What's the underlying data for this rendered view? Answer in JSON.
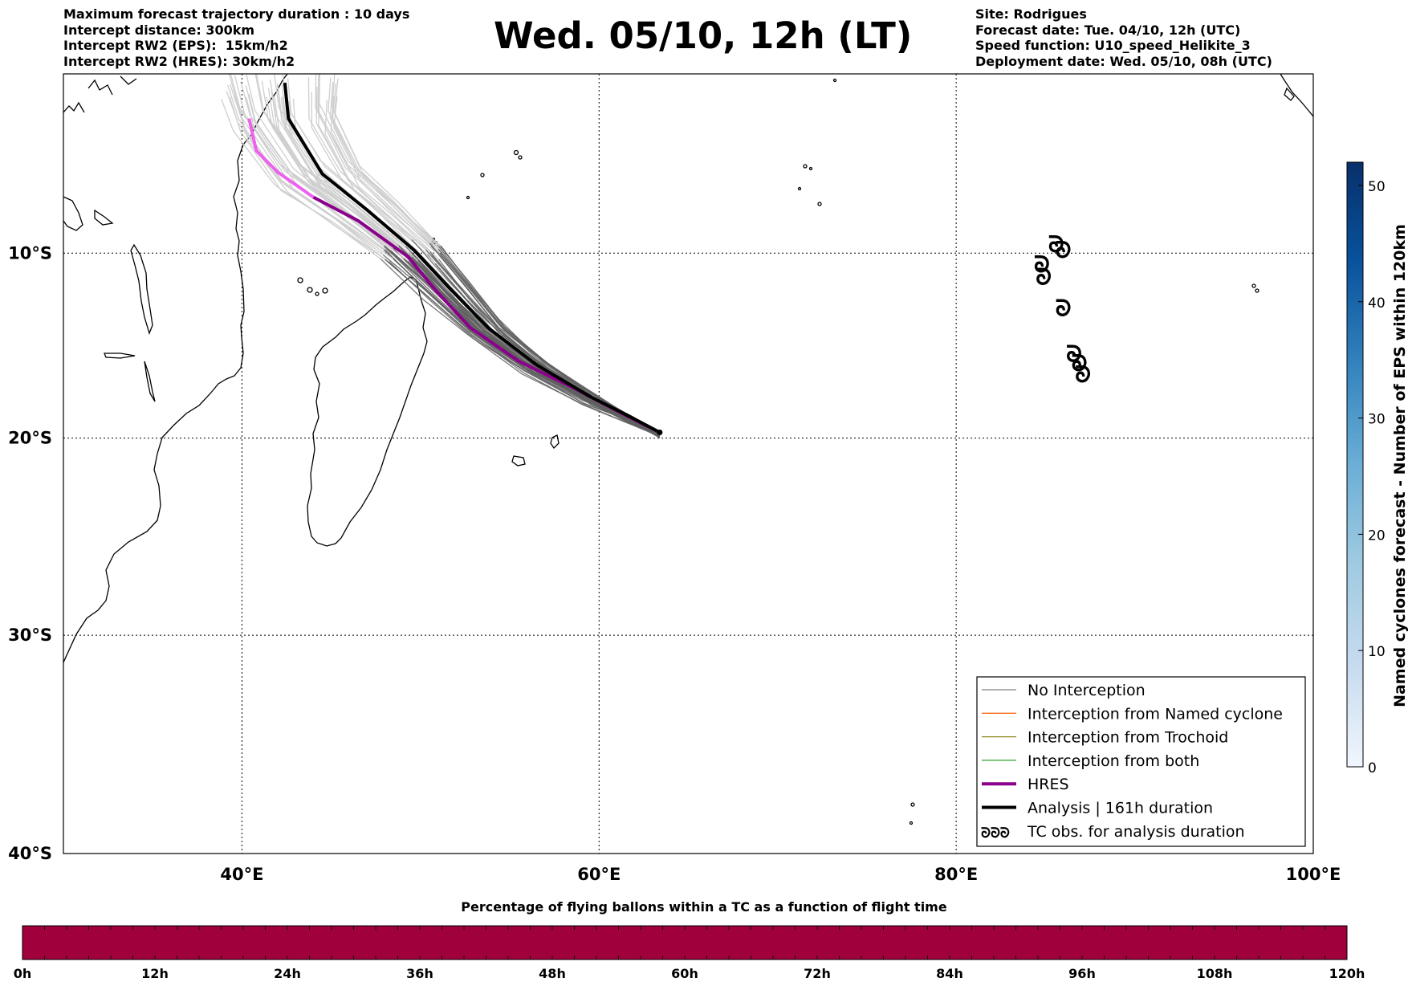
{
  "header": {
    "left_lines": [
      "Maximum forecast trajectory duration : 10 days",
      "Intercept distance: 300km",
      "Intercept RW2 (EPS):  15km/h2",
      "Intercept RW2 (HRES): 30km/h2"
    ],
    "title": "Wed. 05/10, 12h (LT)",
    "right_lines": [
      "Site: Rodrigues",
      "Forecast date: Tue. 04/10, 12h (UTC)",
      "Speed function: U10_speed_Helikite_3",
      "Deployment date: Wed. 05/10, 08h (UTC)"
    ]
  },
  "map": {
    "lon_range": [
      30,
      100
    ],
    "lat_range": [
      0,
      -40
    ],
    "lon_ticks": [
      {
        "lon": 40,
        "label": "40°E"
      },
      {
        "lon": 60,
        "label": "60°E"
      },
      {
        "lon": 80,
        "label": "80°E"
      },
      {
        "lon": 100,
        "label": "100°E"
      }
    ],
    "lat_ticks": [
      {
        "lat": -10,
        "label": "10°S"
      },
      {
        "lat": -20,
        "label": "20°S"
      },
      {
        "lat": -30,
        "label": "30°S"
      },
      {
        "lat": -40,
        "label": "40°S"
      }
    ],
    "gridlines": "dotted",
    "deployment_site": {
      "lon": 63.4,
      "lat": -19.7
    },
    "analysis_track": [
      [
        63.4,
        -19.7
      ],
      [
        61.8,
        -18.9
      ],
      [
        59.5,
        -17.8
      ],
      [
        56.5,
        -16.1
      ],
      [
        53.8,
        -14.1
      ],
      [
        51.6,
        -11.9
      ],
      [
        49.6,
        -9.8
      ],
      [
        47.0,
        -7.6
      ],
      [
        44.5,
        -5.6
      ],
      [
        42.6,
        -2.5
      ],
      [
        42.4,
        -0.5
      ]
    ],
    "hres_track": [
      [
        63.4,
        -19.7
      ],
      [
        61.5,
        -18.8
      ],
      [
        58.5,
        -17.3
      ],
      [
        55.5,
        -15.9
      ],
      [
        52.8,
        -14.1
      ],
      [
        50.8,
        -12.0
      ],
      [
        49.3,
        -10.2
      ],
      [
        46.5,
        -8.2
      ],
      [
        44.0,
        -6.9
      ],
      [
        42.0,
        -5.5
      ],
      [
        40.8,
        -4.3
      ],
      [
        40.4,
        -2.5
      ]
    ],
    "tc_observations": [
      {
        "lon": 85.6,
        "lat": -9.5
      },
      {
        "lon": 86.0,
        "lat": -9.8
      },
      {
        "lon": 84.8,
        "lat": -10.6
      },
      {
        "lon": 84.9,
        "lat": -11.3
      },
      {
        "lon": 86.0,
        "lat": -13.0
      },
      {
        "lon": 86.6,
        "lat": -15.5
      },
      {
        "lon": 86.9,
        "lat": -16.0
      },
      {
        "lon": 87.1,
        "lat": -16.6
      }
    ],
    "tc_symbol": "ᘐ",
    "legend": {
      "position": "lower right",
      "items": [
        {
          "label": "No Interception",
          "color": "#808080",
          "style": "thin-line"
        },
        {
          "label": "Interception from Named cyclone",
          "color": "#ff6a1a",
          "style": "thin-line"
        },
        {
          "label": "Interception from Trochoid",
          "color": "#8c8a1e",
          "style": "thin-line"
        },
        {
          "label": "Interception from both",
          "color": "#2ca02c",
          "style": "thin-line"
        },
        {
          "label": "HRES",
          "color": "#8b008b",
          "style": "thick-line"
        },
        {
          "label": "Analysis | 161h duration",
          "color": "#000000",
          "style": "thick-line"
        },
        {
          "label": "TC obs. for analysis duration",
          "color": "#000000",
          "style": "tc-symbols"
        }
      ]
    },
    "colors": {
      "eps_dark": "#606060",
      "eps_light": "#cfcfcf",
      "hres": "#8b008b",
      "hres_early": "#ee60ee",
      "analysis": "#000000"
    }
  },
  "colorbar_right": {
    "label": "Named cyclones forecast - Number of EPS within 120km",
    "ticks": [
      "0",
      "10",
      "20",
      "30",
      "40",
      "50"
    ],
    "range": [
      0,
      52
    ],
    "cmap": [
      "#f0f6fd",
      "#c6dbef",
      "#9ecae1",
      "#6baed6",
      "#3182bd",
      "#08519c",
      "#08306b"
    ]
  },
  "colorbar_bottom": {
    "title": "Percentage of flying ballons within a TC as a function of flight time",
    "ticks": [
      "0h",
      "12h",
      "24h",
      "36h",
      "48h",
      "60h",
      "72h",
      "84h",
      "96h",
      "108h",
      "120h"
    ],
    "fill_color": "#a0003c"
  }
}
